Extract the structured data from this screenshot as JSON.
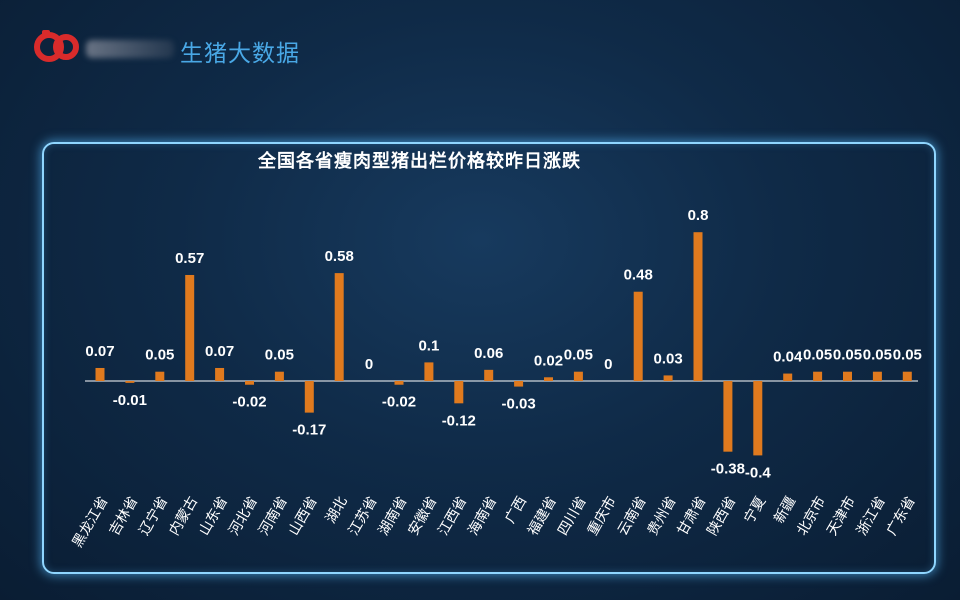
{
  "header": {
    "brand_title": "生猪大数据"
  },
  "chart_data": {
    "type": "bar",
    "title": "全国各省瘦肉型猪出栏价格较昨日涨跌",
    "xlabel": "",
    "ylabel": "",
    "grid": false,
    "legend": "none",
    "bar_color": "#e07a1e",
    "categories": [
      "黑龙江省",
      "吉林省",
      "辽宁省",
      "内蒙古",
      "山东省",
      "河北省",
      "河南省",
      "山西省",
      "湖北",
      "江苏省",
      "湖南省",
      "安徽省",
      "江西省",
      "海南省",
      "广西",
      "福建省",
      "四川省",
      "重庆市",
      "云南省",
      "贵州省",
      "甘肃省",
      "陕西省",
      "宁夏",
      "新疆",
      "北京市",
      "天津市",
      "浙江省",
      "广东省"
    ],
    "values": [
      0.07,
      -0.01,
      0.05,
      0.57,
      0.07,
      -0.02,
      0.05,
      -0.17,
      0.58,
      0,
      -0.02,
      0.1,
      -0.12,
      0.06,
      -0.03,
      0.02,
      0.05,
      0,
      0.48,
      0.03,
      0.8,
      -0.38,
      -0.4,
      0.04,
      0.05,
      0.05,
      0.05,
      0.05
    ],
    "value_labels": [
      "0.07",
      "-0.01",
      "0.05",
      "0.57",
      "0.07",
      "-0.02",
      "0.05",
      "-0.17",
      "0.58",
      "0",
      "-0.02",
      "0.1",
      "-0.12",
      "0.06",
      "-0.03",
      "0.02",
      "0.05",
      "0",
      "0.48",
      "0.03",
      "0.8",
      "-0.38",
      "-0.4",
      "0.04",
      "0.05",
      "0.05",
      "0.05",
      "0.05"
    ]
  }
}
